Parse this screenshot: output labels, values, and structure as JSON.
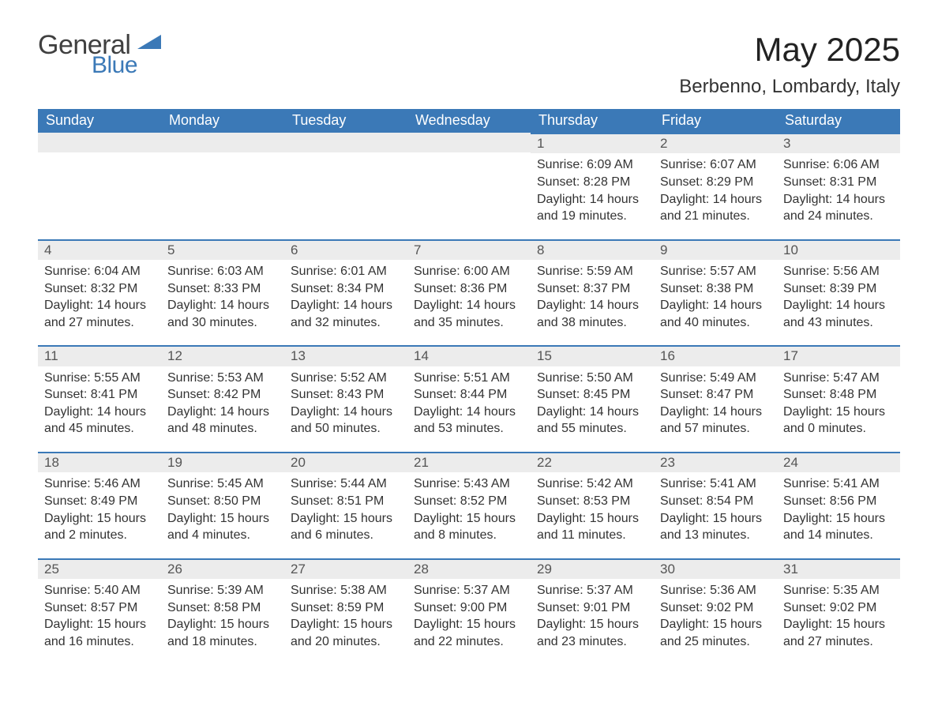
{
  "brand": {
    "name_part1": "General",
    "name_part2": "Blue",
    "color_text": "#404040",
    "color_blue": "#3b79b7"
  },
  "header": {
    "month_title": "May 2025",
    "location": "Berbenno, Lombardy, Italy"
  },
  "style": {
    "header_bg": "#3b79b7",
    "header_fg": "#ffffff",
    "daynum_bg": "#ececec",
    "daynum_fg": "#555555",
    "body_fg": "#333333",
    "page_bg": "#ffffff",
    "border_top": "#3b79b7",
    "font_family": "Segoe UI, Arial, Helvetica, sans-serif",
    "title_fontsize_pt": 32,
    "location_fontsize_pt": 18,
    "weekday_fontsize_pt": 14,
    "daynum_fontsize_pt": 13,
    "body_fontsize_pt": 12
  },
  "calendar": {
    "weekdays": [
      "Sunday",
      "Monday",
      "Tuesday",
      "Wednesday",
      "Thursday",
      "Friday",
      "Saturday"
    ],
    "first_weekday_index": 4,
    "days_in_month": 31,
    "days": {
      "1": {
        "sunrise": "6:09 AM",
        "sunset": "8:28 PM",
        "daylight": "14 hours and 19 minutes."
      },
      "2": {
        "sunrise": "6:07 AM",
        "sunset": "8:29 PM",
        "daylight": "14 hours and 21 minutes."
      },
      "3": {
        "sunrise": "6:06 AM",
        "sunset": "8:31 PM",
        "daylight": "14 hours and 24 minutes."
      },
      "4": {
        "sunrise": "6:04 AM",
        "sunset": "8:32 PM",
        "daylight": "14 hours and 27 minutes."
      },
      "5": {
        "sunrise": "6:03 AM",
        "sunset": "8:33 PM",
        "daylight": "14 hours and 30 minutes."
      },
      "6": {
        "sunrise": "6:01 AM",
        "sunset": "8:34 PM",
        "daylight": "14 hours and 32 minutes."
      },
      "7": {
        "sunrise": "6:00 AM",
        "sunset": "8:36 PM",
        "daylight": "14 hours and 35 minutes."
      },
      "8": {
        "sunrise": "5:59 AM",
        "sunset": "8:37 PM",
        "daylight": "14 hours and 38 minutes."
      },
      "9": {
        "sunrise": "5:57 AM",
        "sunset": "8:38 PM",
        "daylight": "14 hours and 40 minutes."
      },
      "10": {
        "sunrise": "5:56 AM",
        "sunset": "8:39 PM",
        "daylight": "14 hours and 43 minutes."
      },
      "11": {
        "sunrise": "5:55 AM",
        "sunset": "8:41 PM",
        "daylight": "14 hours and 45 minutes."
      },
      "12": {
        "sunrise": "5:53 AM",
        "sunset": "8:42 PM",
        "daylight": "14 hours and 48 minutes."
      },
      "13": {
        "sunrise": "5:52 AM",
        "sunset": "8:43 PM",
        "daylight": "14 hours and 50 minutes."
      },
      "14": {
        "sunrise": "5:51 AM",
        "sunset": "8:44 PM",
        "daylight": "14 hours and 53 minutes."
      },
      "15": {
        "sunrise": "5:50 AM",
        "sunset": "8:45 PM",
        "daylight": "14 hours and 55 minutes."
      },
      "16": {
        "sunrise": "5:49 AM",
        "sunset": "8:47 PM",
        "daylight": "14 hours and 57 minutes."
      },
      "17": {
        "sunrise": "5:47 AM",
        "sunset": "8:48 PM",
        "daylight": "15 hours and 0 minutes."
      },
      "18": {
        "sunrise": "5:46 AM",
        "sunset": "8:49 PM",
        "daylight": "15 hours and 2 minutes."
      },
      "19": {
        "sunrise": "5:45 AM",
        "sunset": "8:50 PM",
        "daylight": "15 hours and 4 minutes."
      },
      "20": {
        "sunrise": "5:44 AM",
        "sunset": "8:51 PM",
        "daylight": "15 hours and 6 minutes."
      },
      "21": {
        "sunrise": "5:43 AM",
        "sunset": "8:52 PM",
        "daylight": "15 hours and 8 minutes."
      },
      "22": {
        "sunrise": "5:42 AM",
        "sunset": "8:53 PM",
        "daylight": "15 hours and 11 minutes."
      },
      "23": {
        "sunrise": "5:41 AM",
        "sunset": "8:54 PM",
        "daylight": "15 hours and 13 minutes."
      },
      "24": {
        "sunrise": "5:41 AM",
        "sunset": "8:56 PM",
        "daylight": "15 hours and 14 minutes."
      },
      "25": {
        "sunrise": "5:40 AM",
        "sunset": "8:57 PM",
        "daylight": "15 hours and 16 minutes."
      },
      "26": {
        "sunrise": "5:39 AM",
        "sunset": "8:58 PM",
        "daylight": "15 hours and 18 minutes."
      },
      "27": {
        "sunrise": "5:38 AM",
        "sunset": "8:59 PM",
        "daylight": "15 hours and 20 minutes."
      },
      "28": {
        "sunrise": "5:37 AM",
        "sunset": "9:00 PM",
        "daylight": "15 hours and 22 minutes."
      },
      "29": {
        "sunrise": "5:37 AM",
        "sunset": "9:01 PM",
        "daylight": "15 hours and 23 minutes."
      },
      "30": {
        "sunrise": "5:36 AM",
        "sunset": "9:02 PM",
        "daylight": "15 hours and 25 minutes."
      },
      "31": {
        "sunrise": "5:35 AM",
        "sunset": "9:02 PM",
        "daylight": "15 hours and 27 minutes."
      }
    },
    "labels": {
      "sunrise_prefix": "Sunrise: ",
      "sunset_prefix": "Sunset: ",
      "daylight_prefix": "Daylight: "
    }
  }
}
